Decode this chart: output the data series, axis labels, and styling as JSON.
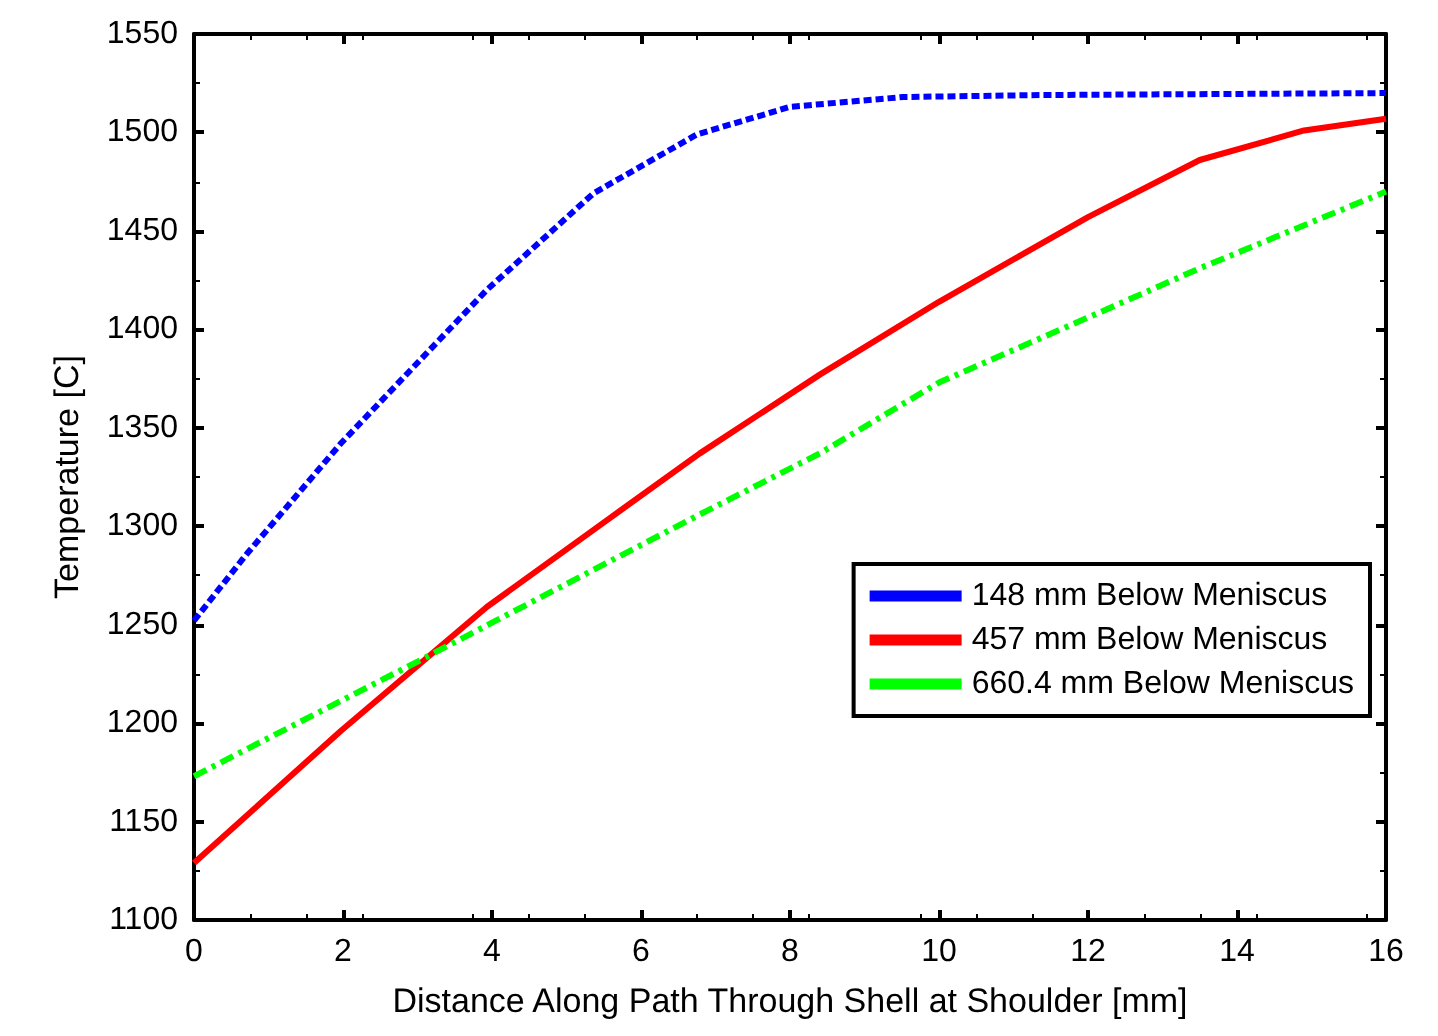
{
  "chart_data": {
    "type": "line",
    "xlabel": "Distance Along Path Through Shell at Shoulder [mm]",
    "ylabel": "Temperature [C]",
    "xlim": [
      0,
      16
    ],
    "xticks": [
      0,
      2,
      4,
      6,
      8,
      10,
      12,
      14,
      16
    ],
    "ylim": [
      1100,
      1550
    ],
    "yticks": [
      1100,
      1150,
      1200,
      1250,
      1300,
      1350,
      1400,
      1450,
      1500,
      1550
    ],
    "grid": false,
    "legend": "right",
    "marker": "none",
    "series": [
      {
        "name": "148 mm Below Meniscus",
        "color": "#0000ff",
        "line_style": "dotted",
        "x": [
          0,
          0.71,
          1.97,
          3.93,
          5.36,
          6.75,
          8,
          9.52,
          11.4,
          16
        ],
        "values": [
          1252,
          1286,
          1342,
          1420,
          1469,
          1499,
          1513,
          1518,
          1519,
          1520
        ]
      },
      {
        "name": "457 mm Below Meniscus",
        "color": "#ff0000",
        "line_style": "solid",
        "x": [
          0,
          1.97,
          3.93,
          5.54,
          6.79,
          8.4,
          10,
          12,
          13.5,
          14.9,
          16
        ],
        "values": [
          1129,
          1196,
          1259,
          1303,
          1337,
          1377,
          1414,
          1457,
          1486,
          1501,
          1507
        ]
      },
      {
        "name": "660.4 mm Below Meniscus",
        "color": "#00ff00",
        "line_style": "dashed",
        "x": [
          0,
          3.04,
          4,
          6.79,
          8.4,
          10,
          12,
          13.5,
          16
        ],
        "values": [
          1173,
          1232,
          1251,
          1306,
          1337,
          1373,
          1406,
          1431,
          1470
        ]
      }
    ]
  }
}
